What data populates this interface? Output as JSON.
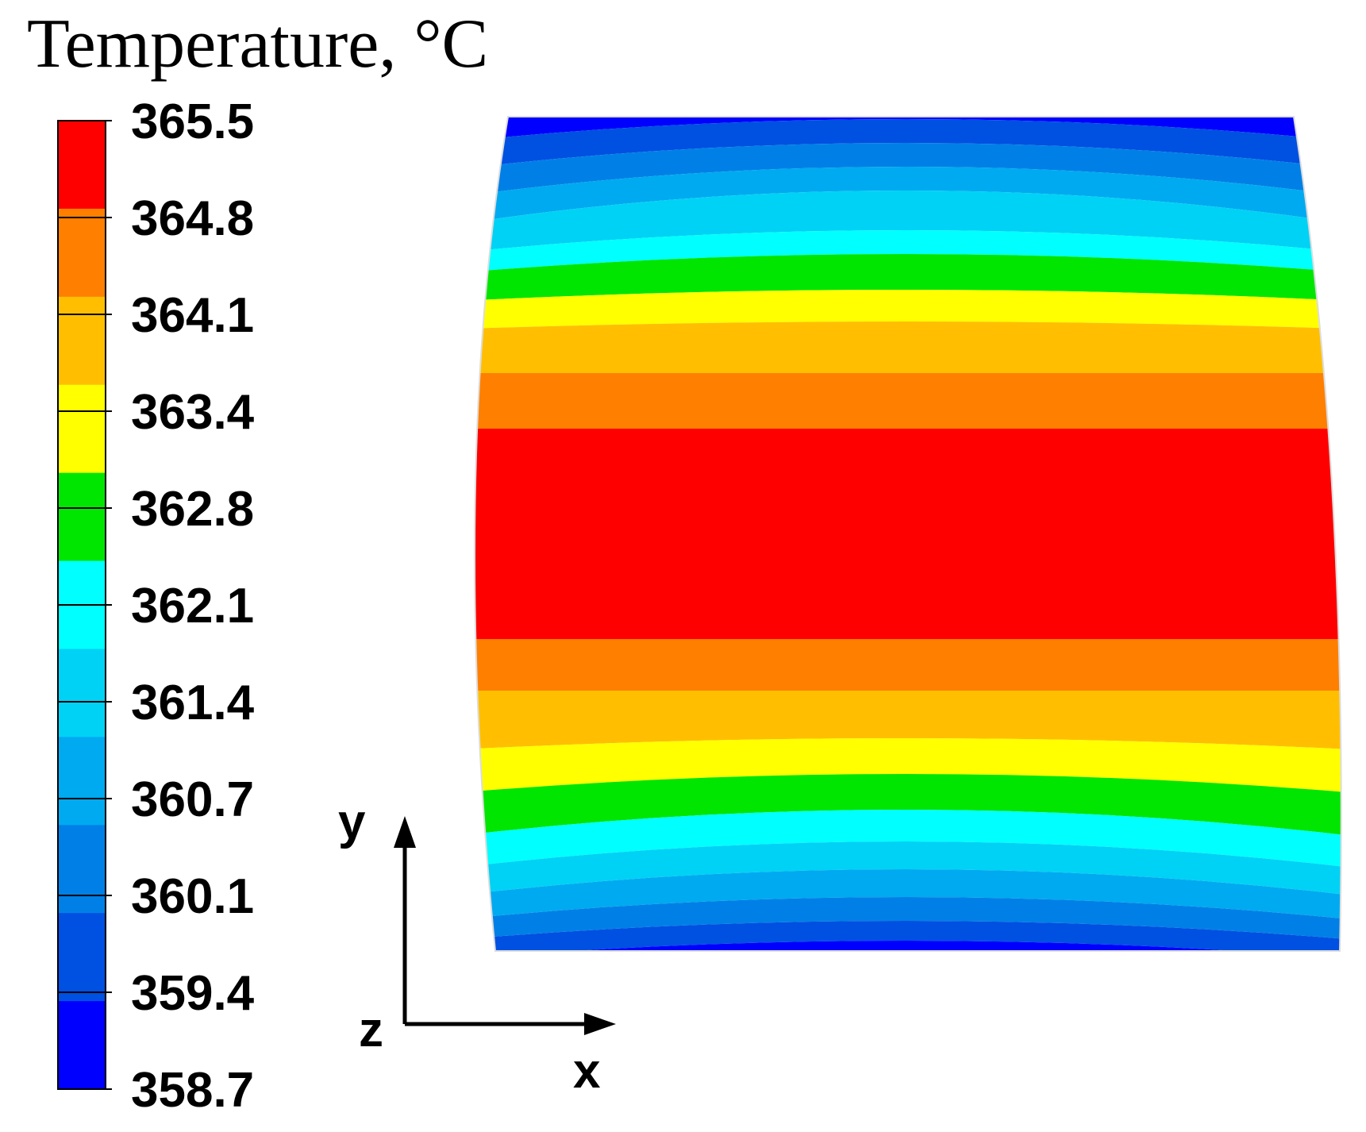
{
  "chart_data": {
    "type": "heatmap",
    "title": "Temperature, °C",
    "colorbar": {
      "min": 358.7,
      "max": 365.5,
      "tick_labels": [
        "365.5",
        "364.8",
        "364.1",
        "363.4",
        "362.8",
        "362.1",
        "361.4",
        "360.7",
        "360.1",
        "359.4",
        "358.7"
      ],
      "level_colors": [
        "#ff0000",
        "#ff7f00",
        "#ffbf00",
        "#ffff00",
        "#00e600",
        "#00ffff",
        "#00d2f5",
        "#00aaf0",
        "#0080e6",
        "#0050e1",
        "#0000ff"
      ]
    },
    "field": {
      "description_levels_top_to_bottom": [
        "#0000ff",
        "#0050e1",
        "#0080e6",
        "#00aaf0",
        "#00d2f5",
        "#00ffff",
        "#00e600",
        "#ffff00",
        "#ffbf00",
        "#ff7f00",
        "#ff0000",
        "#ff7f00",
        "#ffbf00",
        "#ffff00",
        "#00e600",
        "#00ffff",
        "#00d2f5",
        "#00aaf0",
        "#0080e6",
        "#0050e1",
        "#0000ff"
      ]
    },
    "axes": {
      "vertical_label": "y",
      "horizontal_label": "x",
      "out_of_plane_label": "z"
    }
  }
}
